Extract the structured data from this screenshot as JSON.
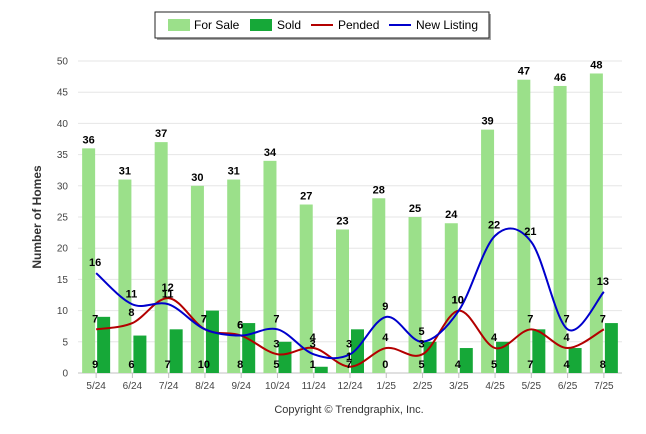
{
  "chart_data": {
    "type": "bar",
    "categories": [
      "5/24",
      "6/24",
      "7/24",
      "8/24",
      "9/24",
      "10/24",
      "11/24",
      "12/24",
      "1/25",
      "2/25",
      "3/25",
      "4/25",
      "5/25",
      "6/25",
      "7/25"
    ],
    "series": [
      {
        "name": "For Sale",
        "kind": "bar",
        "color": "#9be08a",
        "values": [
          36,
          31,
          37,
          30,
          31,
          34,
          27,
          23,
          28,
          25,
          24,
          39,
          47,
          46,
          48
        ]
      },
      {
        "name": "Sold",
        "kind": "bar",
        "color": "#16a838",
        "values": [
          9,
          6,
          7,
          10,
          8,
          5,
          1,
          7,
          0,
          5,
          4,
          5,
          7,
          4,
          8
        ]
      },
      {
        "name": "Pended",
        "kind": "line",
        "color": "#b30000",
        "values": [
          7,
          8,
          12,
          7,
          6,
          3,
          4,
          1,
          4,
          3,
          10,
          4,
          7,
          4,
          7
        ]
      },
      {
        "name": "New Listing",
        "kind": "line",
        "color": "#0000cc",
        "values": [
          16,
          11,
          11,
          7,
          6,
          7,
          3,
          3,
          9,
          5,
          10,
          22,
          21,
          7,
          13
        ]
      }
    ],
    "ylabel": "Number of Homes",
    "xlabel": "",
    "ylim": [
      0,
      50
    ],
    "yticks": [
      0,
      5,
      10,
      15,
      20,
      25,
      30,
      35,
      40,
      45,
      50
    ],
    "grid": true,
    "legend_position": "top-center"
  },
  "credit": "Copyright © Trendgraphix, Inc."
}
